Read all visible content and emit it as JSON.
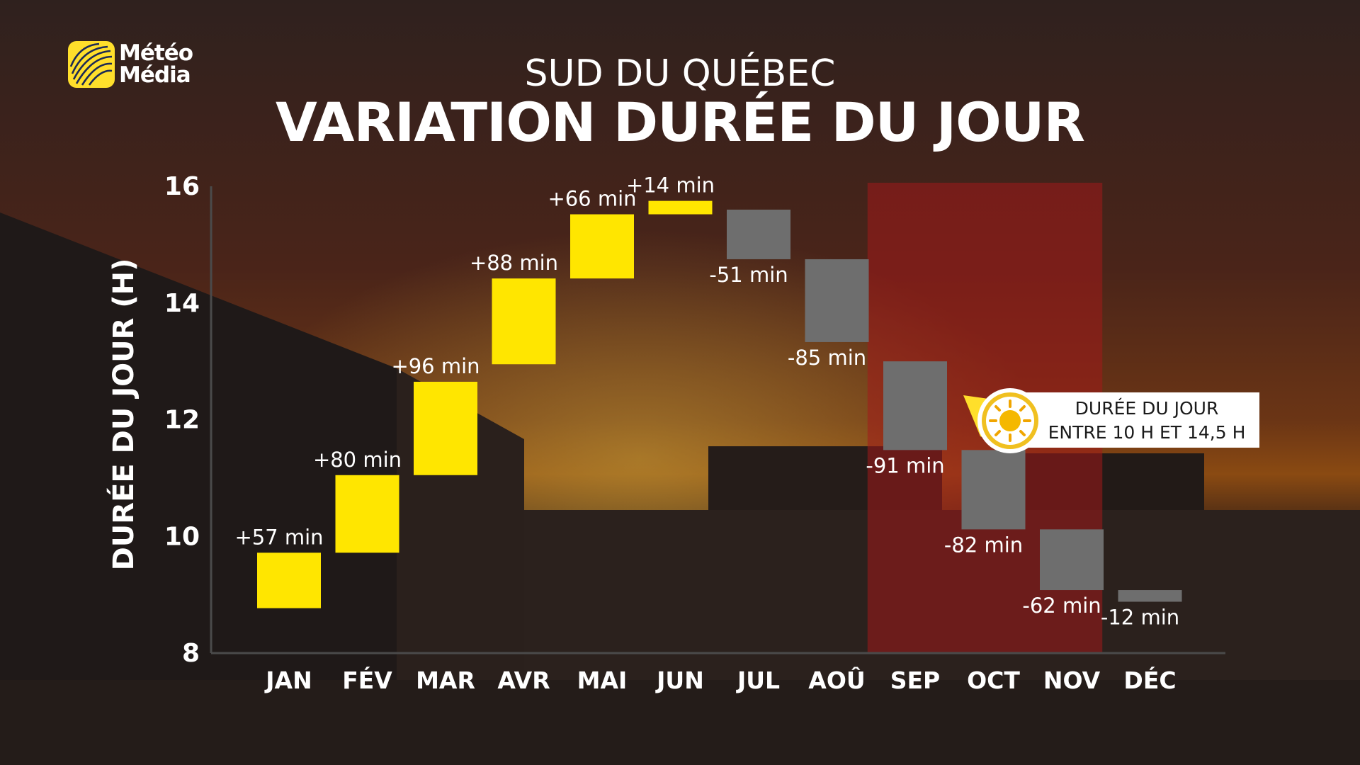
{
  "brand": {
    "name_line1": "Météo",
    "name_line2": "Média",
    "color": "#ffdf2b"
  },
  "header": {
    "supertitle": "SUD DU QUÉBEC",
    "title": "VARIATION DURÉE DU JOUR"
  },
  "annotation": {
    "line1": "DURÉE DU JOUR",
    "line2": "ENTRE 10 H ET 14,5 H",
    "icon": "sun-icon"
  },
  "colors": {
    "increase": "#ffe600",
    "decrease": "#6e6e6e",
    "highlight": "#a31a1a",
    "text": "#ffffff"
  },
  "chart_data": {
    "type": "bar",
    "subtype": "floating-waterfall",
    "title": "VARIATION DURÉE DU JOUR",
    "ylabel": "DURÉE DU JOUR (H)",
    "xlabel": "",
    "ylim": [
      8,
      16
    ],
    "yticks": [
      8,
      10,
      12,
      14,
      16
    ],
    "grid": false,
    "categories": [
      "JAN",
      "FÉV",
      "MAR",
      "AVR",
      "MAI",
      "JUN",
      "JUL",
      "AOÛ",
      "SEP",
      "OCT",
      "NOV",
      "DÉC"
    ],
    "bars": [
      {
        "month": "JAN",
        "start": 8.77,
        "end": 9.72,
        "label": "+57 min"
      },
      {
        "month": "FÉV",
        "start": 9.72,
        "end": 11.05,
        "label": "+80 min"
      },
      {
        "month": "MAR",
        "start": 11.05,
        "end": 12.65,
        "label": "+96 min"
      },
      {
        "month": "AVR",
        "start": 12.95,
        "end": 14.42,
        "label": "+88 min"
      },
      {
        "month": "MAI",
        "start": 14.42,
        "end": 15.52,
        "label": "+66 min"
      },
      {
        "month": "JUN",
        "start": 15.52,
        "end": 15.75,
        "label": "+14 min"
      },
      {
        "month": "JUL",
        "start": 15.6,
        "end": 14.75,
        "label": "-51 min"
      },
      {
        "month": "AOÛ",
        "start": 14.75,
        "end": 13.33,
        "label": "-85 min"
      },
      {
        "month": "SEP",
        "start": 13.0,
        "end": 11.48,
        "label": "-91 min"
      },
      {
        "month": "OCT",
        "start": 11.48,
        "end": 10.12,
        "label": "-82 min"
      },
      {
        "month": "NOV",
        "start": 10.12,
        "end": 9.08,
        "label": "-62 min"
      },
      {
        "month": "DÉC",
        "start": 9.08,
        "end": 8.88,
        "label": "-12 min"
      }
    ],
    "highlight_region": {
      "from": "SEP",
      "to": "NOV",
      "note": "shaded band"
    }
  }
}
